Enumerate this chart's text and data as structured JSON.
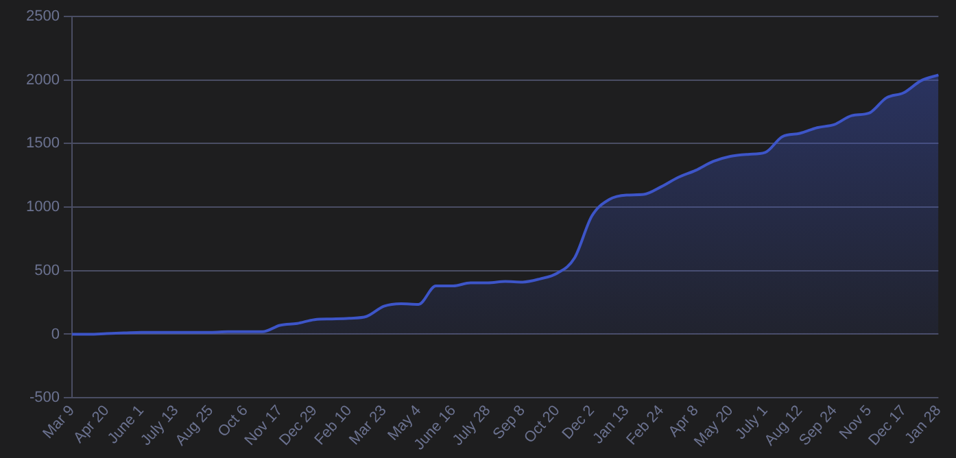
{
  "chart_data": {
    "type": "area",
    "categories": [
      "Mar 9",
      null,
      "Apr 20",
      null,
      "June 1",
      null,
      "July 13",
      null,
      "Aug 25",
      null,
      "Oct 6",
      null,
      "Nov 17",
      null,
      "Dec 29",
      null,
      "Feb 10",
      null,
      "Mar 23",
      null,
      "May 4",
      null,
      "June 16",
      null,
      "July 28",
      null,
      "Sep 8",
      null,
      "Oct 20",
      null,
      "Dec 2",
      null,
      "Jan 13",
      null,
      "Feb 24",
      null,
      "Apr 8",
      null,
      "May 20",
      null,
      "July 1",
      null,
      "Aug 12",
      null,
      "Sep 24",
      null,
      "Nov 5",
      null,
      "Dec 17",
      null,
      "Jan 28"
    ],
    "series": [
      {
        "color": "#3d55c8",
        "values": [
          0,
          0,
          5,
          10,
          15,
          15,
          15,
          15,
          15,
          20,
          20,
          20,
          70,
          85,
          115,
          120,
          125,
          140,
          220,
          240,
          235,
          380,
          380,
          405,
          405,
          415,
          410,
          435,
          480,
          600,
          930,
          1060,
          1095,
          1100,
          1160,
          1235,
          1290,
          1360,
          1400,
          1415,
          1430,
          1555,
          1580,
          1625,
          1650,
          1720,
          1740,
          1860,
          1900,
          1995,
          2040
        ]
      }
    ],
    "ylim": [
      -500,
      2500
    ],
    "yticks": [
      -500,
      0,
      500,
      1000,
      1500,
      2000,
      2500
    ],
    "grid": "y"
  }
}
